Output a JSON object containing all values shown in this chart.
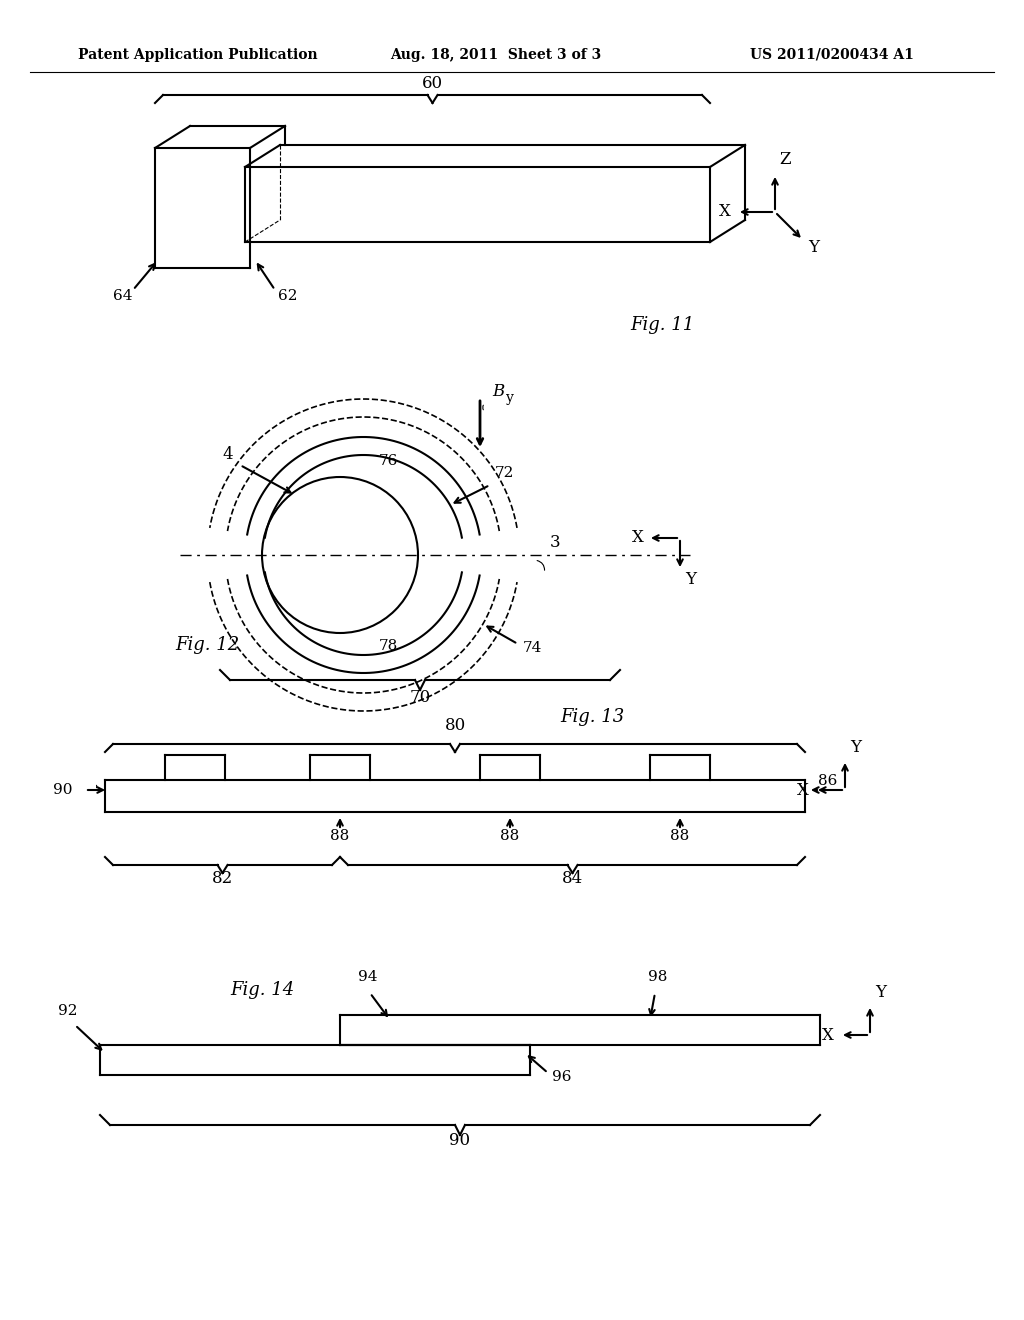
{
  "bg_color": "#ffffff",
  "header_left": "Patent Application Publication",
  "header_mid": "Aug. 18, 2011  Sheet 3 of 3",
  "header_right": "US 2011/0200434 A1",
  "fig11_label": "Fig. 11",
  "fig12_label": "Fig. 12",
  "fig13_label": "Fig. 13",
  "fig14_label": "Fig. 14",
  "line_color": "#000000",
  "line_width": 1.5,
  "text_color": "#000000"
}
